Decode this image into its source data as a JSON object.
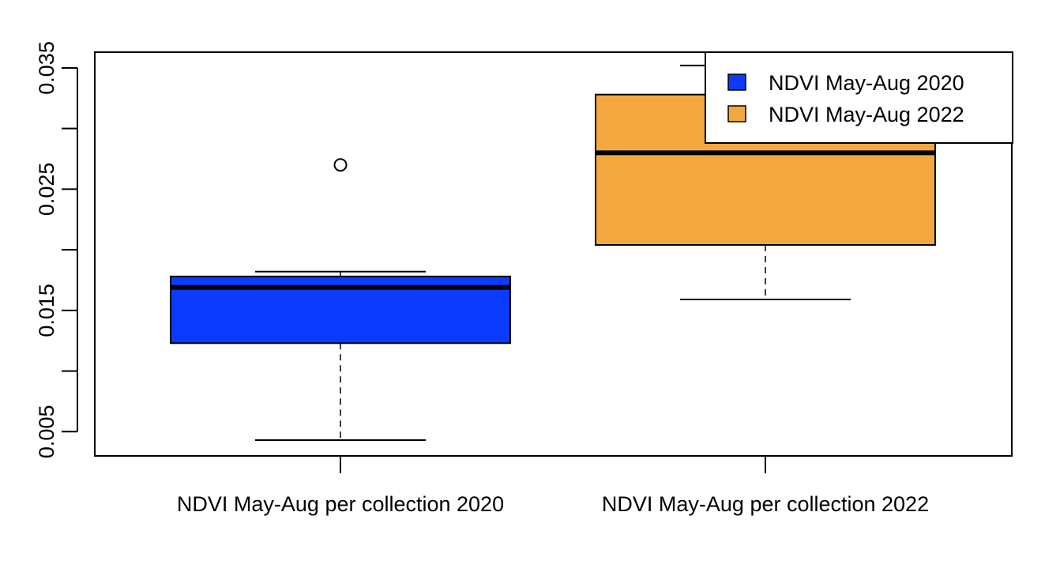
{
  "chart_data": {
    "type": "boxplot",
    "categories": [
      "NDVI May-Aug per collection 2020",
      "NDVI May-Aug per collection 2022"
    ],
    "boxes": [
      {
        "category": "NDVI May-Aug per collection 2020",
        "whisker_low": 0.0043,
        "q1": 0.0123,
        "median": 0.0169,
        "q3": 0.0178,
        "whisker_high": 0.0182,
        "outliers": [
          0.027
        ],
        "color": "#0a3cff"
      },
      {
        "category": "NDVI May-Aug per collection 2022",
        "whisker_low": 0.0159,
        "q1": 0.0204,
        "median": 0.028,
        "q3": 0.0328,
        "whisker_high": 0.0352,
        "outliers": [],
        "color": "#f2a83e"
      }
    ],
    "y_ticks": [
      "0.005",
      "0.010",
      "0.015",
      "0.020",
      "0.025",
      "0.030",
      "0.035"
    ],
    "y_tick_labels": [
      "0.005",
      "",
      "0.015",
      "",
      "0.025",
      "",
      "0.035"
    ],
    "ylim": [
      0.003,
      0.0363
    ],
    "legend": {
      "placement": "top-right",
      "entries": [
        {
          "label": "NDVI May-Aug 2020",
          "color": "#0a3cff"
        },
        {
          "label": "NDVI May-Aug 2022",
          "color": "#f2a83e"
        }
      ]
    },
    "grid": false,
    "title": "",
    "xlabel": "",
    "ylabel": ""
  }
}
